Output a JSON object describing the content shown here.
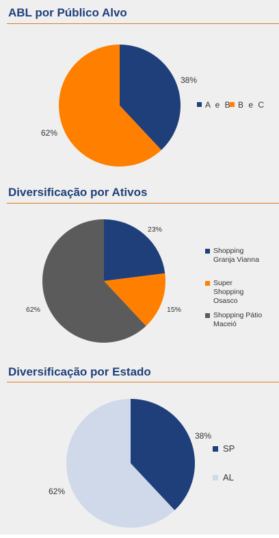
{
  "sections": [
    {
      "title": "ABL por Público Alvo",
      "chart_data": {
        "type": "pie",
        "title": "ABL por Público Alvo",
        "series": [
          {
            "name": "A e B",
            "value": 38,
            "label": "38%",
            "color": "#1f3f7a"
          },
          {
            "name": "B e C",
            "value": 62,
            "label": "62%",
            "color": "#ff7f00"
          }
        ],
        "legend_position": "right"
      }
    },
    {
      "title": "Diversificação por Ativos",
      "chart_data": {
        "type": "pie",
        "title": "Diversificação por Ativos",
        "series": [
          {
            "name": "Shopping Granja Vianna",
            "value": 23,
            "label": "23%",
            "color": "#1f3f7a"
          },
          {
            "name": "Super Shopping Osasco",
            "value": 15,
            "label": "15%",
            "color": "#ff7f00"
          },
          {
            "name": "Shopping Pátio Maceió",
            "value": 62,
            "label": "62%",
            "color": "#5b5b5b"
          }
        ],
        "legend_position": "right"
      }
    },
    {
      "title": "Diversificação por Estado",
      "chart_data": {
        "type": "pie",
        "title": "Diversificação por Estado",
        "series": [
          {
            "name": "SP",
            "value": 38,
            "label": "38%",
            "color": "#1f3f7a"
          },
          {
            "name": "AL",
            "value": 62,
            "label": "62%",
            "color": "#cfd9e9"
          }
        ],
        "legend_position": "right"
      }
    }
  ]
}
